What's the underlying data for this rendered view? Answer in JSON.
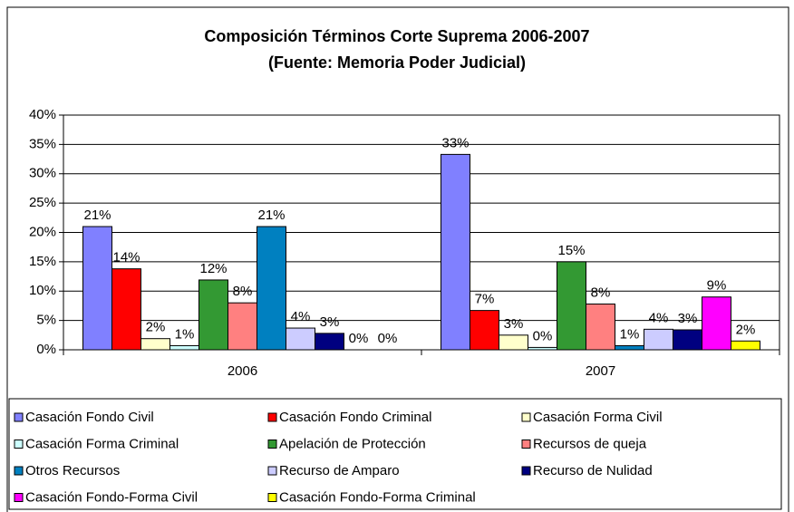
{
  "chart_data": {
    "type": "bar",
    "title": "Composición Términos Corte Suprema 2006-2007",
    "subtitle": "(Fuente: Memoria Poder Judicial)",
    "categories": [
      "2006",
      "2007"
    ],
    "ylim": [
      0,
      40
    ],
    "yticks": [
      {
        "value": 0,
        "label": "0%"
      },
      {
        "value": 5,
        "label": "5%"
      },
      {
        "value": 10,
        "label": "10%"
      },
      {
        "value": 15,
        "label": "15%"
      },
      {
        "value": 20,
        "label": "20%"
      },
      {
        "value": 25,
        "label": "25%"
      },
      {
        "value": 30,
        "label": "30%"
      },
      {
        "value": 35,
        "label": "35%"
      },
      {
        "value": 40,
        "label": "40%"
      }
    ],
    "grid": true,
    "legend": "bottom",
    "series": [
      {
        "name": "Casación Fondo Civil",
        "color": "#8080ff",
        "values": [
          21.0,
          33.3
        ],
        "value_labels": [
          "21%",
          "33%"
        ]
      },
      {
        "name": "Casación Fondo Criminal",
        "color": "#ff0000",
        "values": [
          13.8,
          6.7
        ],
        "value_labels": [
          "14%",
          "7%"
        ]
      },
      {
        "name": "Casación Forma Civil",
        "color": "#ffffcc",
        "values": [
          1.9,
          2.5
        ],
        "value_labels": [
          "2%",
          "3%"
        ]
      },
      {
        "name": "Casación Forma Criminal",
        "color": "#ccffff",
        "values": [
          0.7,
          0.4
        ],
        "value_labels": [
          "1%",
          "0%"
        ]
      },
      {
        "name": "Apelación de Protección",
        "color": "#339933",
        "values": [
          11.9,
          15.0
        ],
        "value_labels": [
          "12%",
          "15%"
        ]
      },
      {
        "name": "Recursos de queja",
        "color": "#ff8080",
        "values": [
          8.0,
          7.8
        ],
        "value_labels": [
          "8%",
          "8%"
        ]
      },
      {
        "name": "Otros Recursos",
        "color": "#0080c0",
        "values": [
          21.0,
          0.7
        ],
        "value_labels": [
          "21%",
          "1%"
        ]
      },
      {
        "name": "Recurso de Amparo",
        "color": "#ccccff",
        "values": [
          3.7,
          3.5
        ],
        "value_labels": [
          "4%",
          "4%"
        ]
      },
      {
        "name": "Recurso de Nulidad",
        "color": "#000080",
        "values": [
          2.8,
          3.4
        ],
        "value_labels": [
          "3%",
          "3%"
        ]
      },
      {
        "name": "Casación Fondo-Forma Civil",
        "color": "#ff00ff",
        "values": [
          0,
          9.0
        ],
        "value_labels": [
          "0%",
          "9%"
        ]
      },
      {
        "name": "Casación Fondo-Forma Criminal",
        "color": "#ffff00",
        "values": [
          0,
          1.5
        ],
        "value_labels": [
          "0%",
          "2%"
        ]
      }
    ]
  }
}
